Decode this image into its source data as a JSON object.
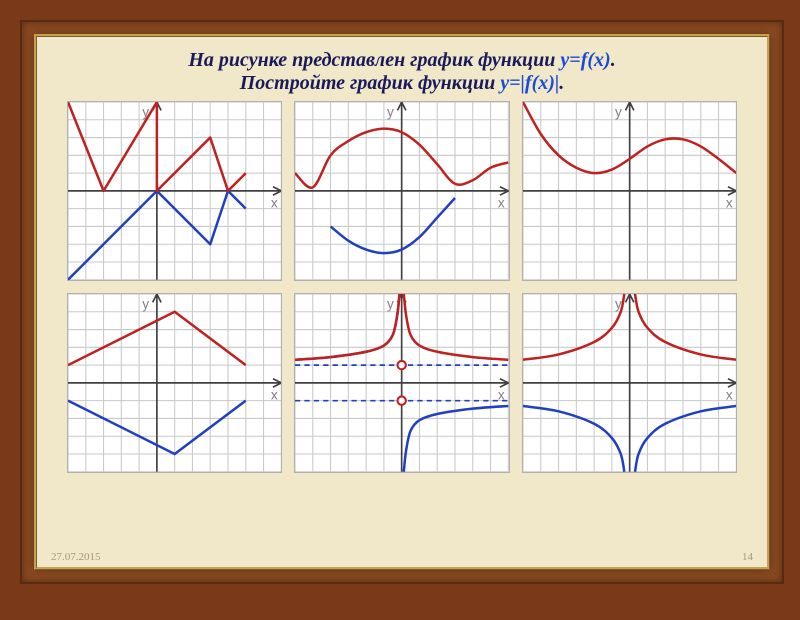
{
  "frame": {
    "outer_bg": "#7a3a1a",
    "border_bg": "#8b4a22",
    "panel_bg": "#f0e8c8"
  },
  "title": {
    "line1_pre": "На рисунке представлен график функции ",
    "line1_fn": "y=f(x)",
    "line1_post": ".",
    "line2_pre": "Постройте график функции ",
    "line2_fn": "y=|f(x)|",
    "line2_post": ".",
    "fontsize": 20,
    "color": "#1a1a5a",
    "fn_color": "#1a4ad8"
  },
  "grid": {
    "cell": 17,
    "nx": 12,
    "ny": 10,
    "grid_color": "#c8c8c8",
    "axis_color": "#404040",
    "bg": "#ffffff"
  },
  "axis_labels": {
    "x": "x",
    "y": "y"
  },
  "colors": {
    "red": "#c02020",
    "blue": "#2040c0"
  },
  "charts": [
    {
      "id": "c1",
      "origin_col": 5,
      "origin_row": 5,
      "blue": [
        [
          -5,
          -5
        ],
        [
          0,
          0
        ],
        [
          3,
          -3
        ],
        [
          4,
          0
        ],
        [
          5,
          -1
        ]
      ],
      "red": [
        [
          -5,
          5
        ],
        [
          -3,
          0
        ],
        [
          0,
          5
        ],
        [
          0,
          0
        ],
        [
          3,
          3
        ],
        [
          4,
          0
        ],
        [
          5,
          1
        ]
      ]
    },
    {
      "id": "c2",
      "origin_col": 6,
      "origin_row": 5,
      "blue_curve": [
        [
          -4,
          -2
        ],
        [
          -3,
          -2.8
        ],
        [
          -2,
          -3.3
        ],
        [
          -1,
          -3.5
        ],
        [
          0,
          -3.3
        ],
        [
          1,
          -2.6
        ],
        [
          2,
          -1.5
        ],
        [
          3,
          -0.4
        ]
      ],
      "red_curve": [
        [
          -6,
          1
        ],
        [
          -5,
          0.2
        ],
        [
          -4,
          2
        ],
        [
          -3,
          2.8
        ],
        [
          -2,
          3.3
        ],
        [
          -1,
          3.5
        ],
        [
          0,
          3.3
        ],
        [
          1,
          2.6
        ],
        [
          2,
          1.5
        ],
        [
          3,
          0.4
        ],
        [
          4,
          0.6
        ],
        [
          5,
          1.3
        ],
        [
          6,
          1.6
        ]
      ]
    },
    {
      "id": "c3",
      "origin_col": 6,
      "origin_row": 5,
      "red_curve": [
        [
          -6,
          5
        ],
        [
          -5,
          3.2
        ],
        [
          -4,
          2
        ],
        [
          -3,
          1.3
        ],
        [
          -2,
          1
        ],
        [
          -1,
          1.2
        ],
        [
          0,
          1.8
        ],
        [
          1,
          2.5
        ],
        [
          2,
          2.9
        ],
        [
          3,
          2.9
        ],
        [
          4,
          2.5
        ],
        [
          5,
          1.8
        ],
        [
          6,
          1
        ]
      ]
    },
    {
      "id": "c4",
      "origin_col": 5,
      "origin_row": 5,
      "blue": [
        [
          -5,
          -1
        ],
        [
          1,
          -4
        ],
        [
          5,
          -1
        ]
      ],
      "red": [
        [
          -5,
          1
        ],
        [
          1,
          4
        ],
        [
          5,
          1
        ]
      ]
    },
    {
      "id": "c5",
      "origin_col": 6,
      "origin_row": 5,
      "dash1": [
        [
          -6,
          1
        ],
        [
          6,
          1
        ]
      ],
      "dash2": [
        [
          -6,
          -1
        ],
        [
          6,
          -1
        ]
      ],
      "blue_curve_a": [
        [
          -6,
          1.3
        ],
        [
          -4,
          1.45
        ],
        [
          -2,
          1.75
        ],
        [
          -1,
          2.1
        ],
        [
          -0.5,
          2.7
        ],
        [
          -0.25,
          3.8
        ],
        [
          -0.12,
          5
        ]
      ],
      "blue_curve_b": [
        [
          0.12,
          -5
        ],
        [
          0.25,
          -3.8
        ],
        [
          0.5,
          -2.7
        ],
        [
          1,
          -2.1
        ],
        [
          2,
          -1.75
        ],
        [
          4,
          -1.45
        ],
        [
          6,
          -1.3
        ]
      ],
      "red_curve_a": [
        [
          -6,
          1.3
        ],
        [
          -4,
          1.45
        ],
        [
          -2,
          1.75
        ],
        [
          -1,
          2.1
        ],
        [
          -0.5,
          2.7
        ],
        [
          -0.25,
          3.8
        ],
        [
          -0.12,
          5
        ]
      ],
      "red_curve_b": [
        [
          0.12,
          5
        ],
        [
          0.25,
          3.8
        ],
        [
          0.5,
          2.7
        ],
        [
          1,
          2.1
        ],
        [
          2,
          1.75
        ],
        [
          4,
          1.45
        ],
        [
          6,
          1.3
        ]
      ],
      "open_points": [
        [
          0,
          1
        ],
        [
          0,
          -1
        ]
      ]
    },
    {
      "id": "c6",
      "origin_col": 6,
      "origin_row": 5,
      "blue_curve_a": [
        [
          -6,
          -1.3
        ],
        [
          -4,
          -1.6
        ],
        [
          -2,
          -2.3
        ],
        [
          -1,
          -3.1
        ],
        [
          -0.5,
          -4
        ],
        [
          -0.3,
          -5
        ]
      ],
      "blue_curve_b": [
        [
          0.3,
          -5
        ],
        [
          0.5,
          -4
        ],
        [
          1,
          -3.1
        ],
        [
          2,
          -2.3
        ],
        [
          4,
          -1.6
        ],
        [
          6,
          -1.3
        ]
      ],
      "red_curve_a": [
        [
          -6,
          1.3
        ],
        [
          -4,
          1.6
        ],
        [
          -2,
          2.3
        ],
        [
          -1,
          3.1
        ],
        [
          -0.5,
          4
        ],
        [
          -0.3,
          5
        ]
      ],
      "red_curve_b": [
        [
          0.3,
          5
        ],
        [
          0.5,
          4
        ],
        [
          1,
          3.1
        ],
        [
          2,
          2.3
        ],
        [
          4,
          1.6
        ],
        [
          6,
          1.3
        ]
      ]
    }
  ],
  "footer": {
    "date": "27.07.2015",
    "page": "14"
  }
}
